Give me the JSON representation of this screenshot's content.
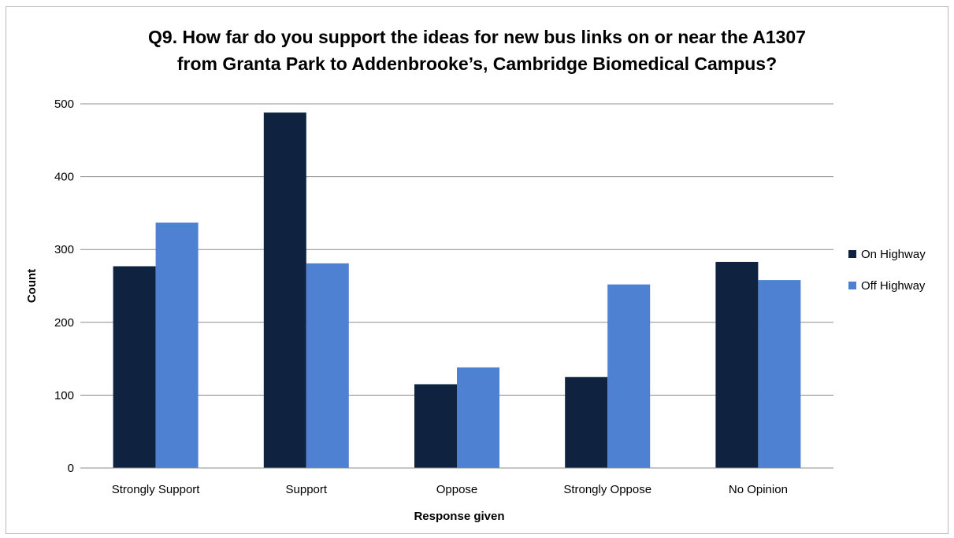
{
  "chart_data": {
    "type": "bar",
    "title_line1": "Q9. How far do you support the ideas for new bus links on or near the A1307",
    "title_line2": "from Granta Park to Addenbrooke’s, Cambridge Biomedical Campus?",
    "xlabel": "Response given",
    "ylabel": "Count",
    "ylim": [
      0,
      500
    ],
    "yticks": [
      "0",
      "100",
      "200",
      "300",
      "400",
      "500"
    ],
    "categories": [
      "Strongly Support",
      "Support",
      "Oppose",
      "Strongly Oppose",
      "No Opinion"
    ],
    "series": [
      {
        "name": "On Highway",
        "color": "#0f2340",
        "values": [
          277,
          488,
          115,
          125,
          283
        ]
      },
      {
        "name": "Off Highway",
        "color": "#4f81d3",
        "values": [
          337,
          281,
          138,
          252,
          258
        ]
      }
    ],
    "grid": true,
    "legend_position": "right"
  }
}
